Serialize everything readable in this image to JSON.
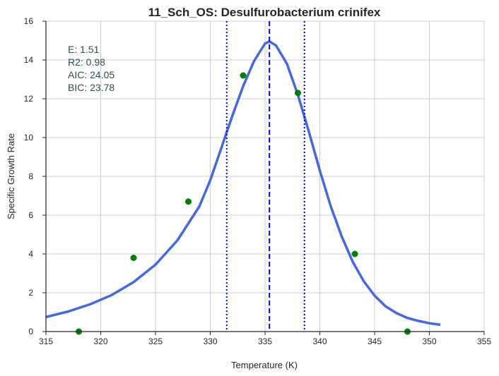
{
  "chart_data": {
    "type": "scatter",
    "title": "11_Sch_OS: Desulfurobacterium crinifex",
    "xlabel": "Temperature (K)",
    "ylabel": "Specific Growth Rate",
    "xlim": [
      315,
      355
    ],
    "ylim": [
      0,
      16
    ],
    "xticks": [
      315,
      320,
      325,
      330,
      335,
      340,
      345,
      350,
      355
    ],
    "yticks": [
      0,
      2,
      4,
      6,
      8,
      10,
      12,
      14,
      16
    ],
    "grid": true,
    "points": [
      {
        "x": 318,
        "y": 0.0
      },
      {
        "x": 323,
        "y": 3.8
      },
      {
        "x": 328,
        "y": 6.7
      },
      {
        "x": 333,
        "y": 13.2
      },
      {
        "x": 338,
        "y": 12.3
      },
      {
        "x": 343.2,
        "y": 4.0
      },
      {
        "x": 348,
        "y": 0.0
      }
    ],
    "fit_curve": {
      "x": [
        315,
        317,
        319,
        321,
        323,
        325,
        327,
        329,
        330,
        331,
        332,
        333,
        334,
        335,
        335.4,
        336,
        337,
        338,
        339,
        340,
        341,
        342,
        343,
        344,
        345,
        346,
        347,
        348,
        349,
        350,
        351
      ],
      "y": [
        0.75,
        1.03,
        1.4,
        1.88,
        2.55,
        3.45,
        4.7,
        6.45,
        7.8,
        9.45,
        11.1,
        12.65,
        13.95,
        14.85,
        14.95,
        14.75,
        13.8,
        12.2,
        10.3,
        8.3,
        6.45,
        4.9,
        3.6,
        2.6,
        1.85,
        1.3,
        0.95,
        0.7,
        0.55,
        0.43,
        0.35
      ]
    },
    "vlines": [
      {
        "x": 331.5,
        "style": "dotted",
        "color": "#0000ff"
      },
      {
        "x": 335.4,
        "style": "dashed",
        "color": "#0000ff"
      },
      {
        "x": 338.6,
        "style": "dotted",
        "color": "#0000ff"
      }
    ],
    "stats_text": [
      "E:  1.51",
      "R2:  0.98",
      "AIC: 24.05",
      "BIC: 23.78"
    ],
    "colors": {
      "curve": "#4169e1",
      "points": "#008000",
      "vlines": "#0000ff",
      "grid": "#cccccc",
      "stats": "#2f4f4f"
    }
  }
}
